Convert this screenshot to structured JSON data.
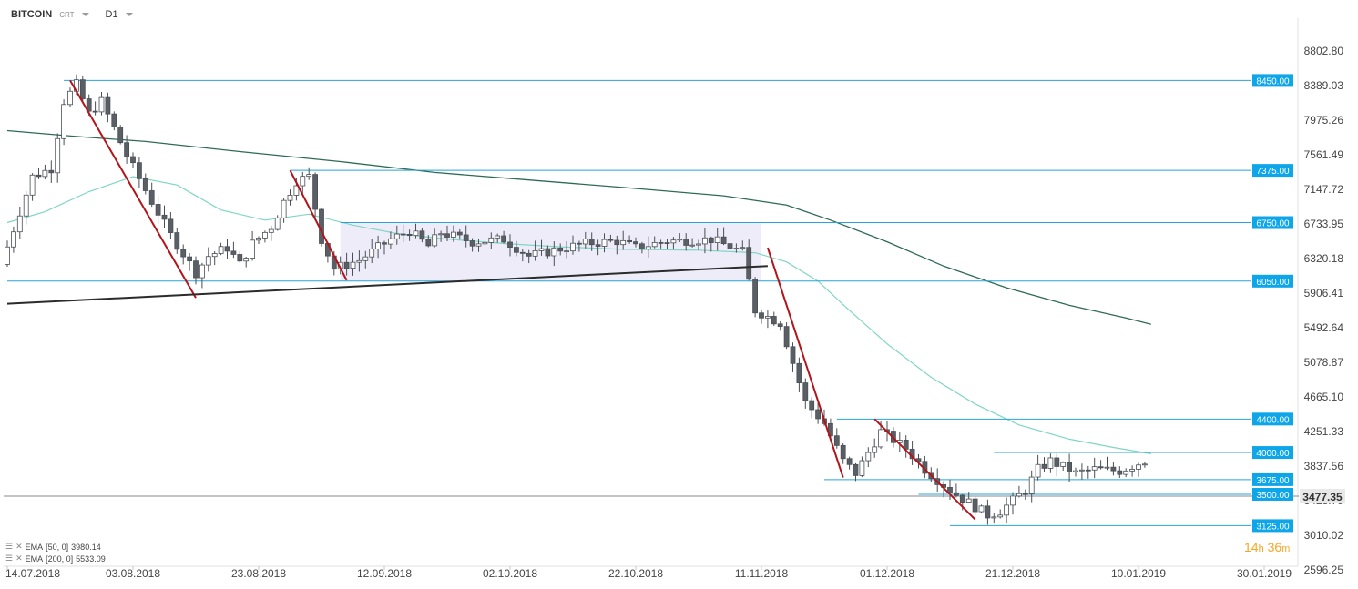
{
  "header": {
    "symbol": "BITCOIN",
    "exchange": "CRT",
    "timeframe": "D1"
  },
  "indicators": [
    {
      "label": "EMA",
      "params": "[50, 0]",
      "value": "3980.14"
    },
    {
      "label": "EMA",
      "params": "[200, 0]",
      "value": "5533.09"
    }
  ],
  "timer": {
    "hours": "14",
    "h_unit": "h",
    "minutes": "36",
    "m_unit": "m"
  },
  "colors": {
    "level_line": "#29a3d8",
    "level_badge": "#0ea5e9",
    "trend_red": "#b3141a",
    "trend_black": "#2b2b2b",
    "ema50": "#7fd6c3",
    "ema200": "#2e6b55",
    "candle_bear": "#5a5f66",
    "candle_bull": "#ffffff",
    "range_box": "#ece9f8"
  },
  "chart_data": {
    "type": "candlestick",
    "y_ticks": [
      "8802.80",
      "8389.03",
      "7975.26",
      "7561.49",
      "7147.72",
      "6733.95",
      "6320.18",
      "5906.41",
      "5492.64",
      "5078.87",
      "4665.10",
      "4251.33",
      "3837.56",
      "3423.79",
      "3010.02",
      "2596.25"
    ],
    "x_ticks": [
      "14.07.2018",
      "03.08.2018",
      "23.08.2018",
      "12.09.2018",
      "02.10.2018",
      "22.10.2018",
      "11.11.2018",
      "01.12.2018",
      "21.12.2018",
      "10.01.2019",
      "30.01.2019"
    ],
    "ylim": [
      2596.25,
      8802.8
    ],
    "x_range": [
      "2018-07-14",
      "2019-01-30"
    ],
    "current_price": "3477.35",
    "levels": [
      {
        "price": 8450,
        "label": "8450.00",
        "from": "2018-07-23"
      },
      {
        "price": 7375,
        "label": "7375.00",
        "from": "2018-08-28"
      },
      {
        "price": 6750,
        "label": "6750.00",
        "from": "2018-09-05"
      },
      {
        "price": 6050,
        "label": "6050.00",
        "from": "2018-07-14"
      },
      {
        "price": 4400,
        "label": "4400.00",
        "from": "2018-11-23"
      },
      {
        "price": 4000,
        "label": "4000.00",
        "from": "2018-12-18"
      },
      {
        "price": 3675,
        "label": "3675.00",
        "from": "2018-11-21"
      },
      {
        "price": 3500,
        "label": "3500.00",
        "from": "2018-12-06"
      },
      {
        "price": 3125,
        "label": "3125.00",
        "from": "2018-12-11"
      }
    ],
    "range_box": {
      "from": "2018-09-05",
      "to": "2018-11-11",
      "top": 6750,
      "bottom": 6050
    },
    "trendlines_red": [
      [
        [
          "2018-07-24",
          8450
        ],
        [
          "2018-08-13",
          5850
        ]
      ],
      [
        [
          "2018-08-28",
          7375
        ],
        [
          "2018-09-06",
          6060
        ]
      ],
      [
        [
          "2018-11-12",
          6450
        ],
        [
          "2018-11-24",
          3700
        ]
      ],
      [
        [
          "2018-11-29",
          4400
        ],
        [
          "2018-12-15",
          3200
        ]
      ]
    ],
    "trendline_black": [
      [
        "2018-07-14",
        5780
      ],
      [
        "2018-11-12",
        6230
      ]
    ],
    "ema50": [
      [
        "2018-07-14",
        6750
      ],
      [
        "2018-07-20",
        6880
      ],
      [
        "2018-07-27",
        7120
      ],
      [
        "2018-08-03",
        7300
      ],
      [
        "2018-08-10",
        7200
      ],
      [
        "2018-08-17",
        6900
      ],
      [
        "2018-08-24",
        6780
      ],
      [
        "2018-08-31",
        6850
      ],
      [
        "2018-09-07",
        6720
      ],
      [
        "2018-09-14",
        6620
      ],
      [
        "2018-09-21",
        6560
      ],
      [
        "2018-10-01",
        6500
      ],
      [
        "2018-10-10",
        6460
      ],
      [
        "2018-10-20",
        6430
      ],
      [
        "2018-11-01",
        6420
      ],
      [
        "2018-11-10",
        6390
      ],
      [
        "2018-11-15",
        6280
      ],
      [
        "2018-11-20",
        6050
      ],
      [
        "2018-11-25",
        5700
      ],
      [
        "2018-12-01",
        5300
      ],
      [
        "2018-12-08",
        4900
      ],
      [
        "2018-12-15",
        4580
      ],
      [
        "2018-12-22",
        4330
      ],
      [
        "2018-12-30",
        4160
      ],
      [
        "2019-01-06",
        4060
      ],
      [
        "2019-01-12",
        3985
      ]
    ],
    "ema200": [
      [
        "2018-07-14",
        7850
      ],
      [
        "2018-07-25",
        7780
      ],
      [
        "2018-08-05",
        7720
      ],
      [
        "2018-08-20",
        7600
      ],
      [
        "2018-09-05",
        7480
      ],
      [
        "2018-09-20",
        7350
      ],
      [
        "2018-10-05",
        7260
      ],
      [
        "2018-10-20",
        7170
      ],
      [
        "2018-11-05",
        7070
      ],
      [
        "2018-11-15",
        6960
      ],
      [
        "2018-11-22",
        6780
      ],
      [
        "2018-12-01",
        6520
      ],
      [
        "2018-12-10",
        6230
      ],
      [
        "2018-12-20",
        5970
      ],
      [
        "2018-12-30",
        5760
      ],
      [
        "2019-01-08",
        5610
      ],
      [
        "2019-01-12",
        5533
      ]
    ]
  }
}
